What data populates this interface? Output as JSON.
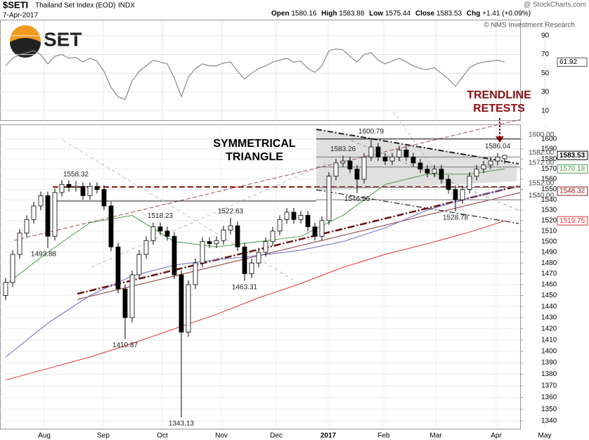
{
  "header": {
    "symbol": "$SETI",
    "name": "Thailand Set Index (EOD)",
    "exchange": "INDX",
    "date": "7-Apr-2017",
    "source": "@ StockCharts.com",
    "credit": "© NMS Investment Research",
    "logo": "SET",
    "quote": [
      {
        "label": "Open",
        "value": 1580.16
      },
      {
        "label": "High",
        "value": 1583.88
      },
      {
        "label": "Low",
        "value": 1575.44
      },
      {
        "label": "Close",
        "value": 1583.53
      },
      {
        "label": "Chg",
        "value": 1.41,
        "value_label": "+1.41",
        "pct": 0.09,
        "pct_label": "(+0.09%)"
      }
    ]
  },
  "chart_data": [
    {
      "type": "line",
      "color": "#888888",
      "ylim": [
        0,
        106.4
      ],
      "yticks": [
        10,
        30,
        50,
        70,
        90
      ],
      "values": [
        58,
        66,
        70,
        72,
        74,
        70,
        60,
        68,
        70,
        66,
        67,
        62,
        66,
        63,
        52,
        35,
        25,
        22,
        42,
        52,
        58,
        64,
        62,
        60,
        45,
        25,
        46,
        55,
        60,
        58,
        58,
        61,
        62,
        52,
        44,
        50,
        55,
        58,
        62,
        64,
        66,
        62,
        63,
        55,
        51,
        58,
        74,
        76,
        75,
        68,
        62,
        70,
        72,
        64,
        60,
        63,
        66,
        62,
        58,
        55,
        54,
        56,
        50,
        44,
        36,
        46,
        56,
        60,
        62,
        63,
        64,
        61.92
      ]
    },
    {
      "type": "candlestick",
      "log": true,
      "xlim": [
        -0.8,
        73.2
      ],
      "ylim": [
        1333.5,
        1614
      ],
      "xticks": [
        {
          "value": 5.5,
          "label": "Aug"
        },
        {
          "value": 13.9,
          "label": "Sep"
        },
        {
          "value": 22.3,
          "label": "Oct"
        },
        {
          "value": 30.7,
          "label": "Nov"
        },
        {
          "value": 38.5,
          "label": "Dec"
        },
        {
          "value": 45.9,
          "label": "2017"
        },
        {
          "value": 53.8,
          "label": "Feb"
        },
        {
          "value": 61.2,
          "label": "Mar"
        },
        {
          "value": 69.8,
          "label": "Apr"
        },
        {
          "value": 76.7,
          "label": "May"
        }
      ],
      "yticks": [
        1340,
        1350,
        1360,
        1370,
        1380,
        1390,
        1400,
        1410,
        1420,
        1430,
        1440,
        1450,
        1460,
        1470,
        1480,
        1490,
        1500,
        1510,
        1520,
        1530,
        1540,
        1550,
        1560,
        1570,
        1580,
        1590,
        1600
      ],
      "ohlc": [
        [
          1450,
          1466,
          1446,
          1462
        ],
        [
          1462,
          1492,
          1458,
          1488
        ],
        [
          1488,
          1512,
          1484,
          1508
        ],
        [
          1508,
          1525,
          1504,
          1521
        ],
        [
          1521,
          1538,
          1517,
          1534
        ],
        [
          1534,
          1548,
          1530,
          1544
        ],
        [
          1544,
          1548,
          1493.88,
          1505
        ],
        [
          1505,
          1551,
          1501,
          1547
        ],
        [
          1547,
          1559,
          1543,
          1555
        ],
        [
          1555,
          1559,
          1548,
          1552
        ],
        [
          1552,
          1558.32,
          1548,
          1553
        ],
        [
          1553,
          1557,
          1540,
          1544
        ],
        [
          1544,
          1557,
          1540,
          1553
        ],
        [
          1553,
          1557,
          1546,
          1550
        ],
        [
          1550,
          1554,
          1530,
          1534
        ],
        [
          1534,
          1538,
          1491,
          1495
        ],
        [
          1495,
          1499,
          1452,
          1456
        ],
        [
          1456,
          1460,
          1410.87,
          1430
        ],
        [
          1430,
          1473,
          1426,
          1469
        ],
        [
          1469,
          1492,
          1465,
          1488
        ],
        [
          1488,
          1505,
          1484,
          1501
        ],
        [
          1501,
          1518,
          1497,
          1514
        ],
        [
          1514,
          1518.23,
          1506,
          1510
        ],
        [
          1510,
          1514,
          1501,
          1505
        ],
        [
          1505,
          1509,
          1465,
          1469
        ],
        [
          1469,
          1473,
          1343.13,
          1417
        ],
        [
          1417,
          1464,
          1413,
          1460
        ],
        [
          1460,
          1484,
          1456,
          1480
        ],
        [
          1480,
          1504,
          1476,
          1500
        ],
        [
          1500,
          1504,
          1494,
          1498
        ],
        [
          1498,
          1505,
          1494,
          1501
        ],
        [
          1501,
          1515,
          1497,
          1511
        ],
        [
          1511,
          1522.63,
          1507,
          1515
        ],
        [
          1515,
          1519,
          1491,
          1495
        ],
        [
          1495,
          1499,
          1463.31,
          1470
        ],
        [
          1470,
          1484,
          1466,
          1480
        ],
        [
          1480,
          1494,
          1476,
          1490
        ],
        [
          1490,
          1504,
          1486,
          1500
        ],
        [
          1500,
          1514,
          1496,
          1510
        ],
        [
          1510,
          1525,
          1506,
          1521
        ],
        [
          1521,
          1532,
          1517,
          1528
        ],
        [
          1528,
          1532,
          1517,
          1521
        ],
        [
          1521,
          1529,
          1517,
          1525
        ],
        [
          1525,
          1529,
          1510,
          1514
        ],
        [
          1514,
          1518,
          1501,
          1505
        ],
        [
          1505,
          1524,
          1501,
          1520
        ],
        [
          1520,
          1567,
          1516,
          1563
        ],
        [
          1563,
          1580,
          1559,
          1576
        ],
        [
          1576,
          1583.26,
          1572,
          1578
        ],
        [
          1578,
          1582,
          1566,
          1570
        ],
        [
          1570,
          1574,
          1546.56,
          1560
        ],
        [
          1560,
          1586,
          1556,
          1582
        ],
        [
          1582,
          1600.79,
          1578,
          1592
        ],
        [
          1592,
          1596,
          1578,
          1582
        ],
        [
          1582,
          1586,
          1574,
          1578
        ],
        [
          1578,
          1586,
          1574,
          1582
        ],
        [
          1582,
          1593,
          1578,
          1589
        ],
        [
          1589,
          1593,
          1578,
          1582
        ],
        [
          1582,
          1586,
          1572,
          1576
        ],
        [
          1576,
          1580,
          1566,
          1570
        ],
        [
          1570,
          1574,
          1562,
          1566
        ],
        [
          1566,
          1574,
          1562,
          1570
        ],
        [
          1570,
          1574,
          1556,
          1560
        ],
        [
          1560,
          1564,
          1546,
          1550
        ],
        [
          1550,
          1554,
          1528.78,
          1540
        ],
        [
          1540,
          1554,
          1536,
          1550
        ],
        [
          1550,
          1567,
          1546,
          1563
        ],
        [
          1563,
          1574,
          1559,
          1570
        ],
        [
          1570,
          1578,
          1566,
          1574
        ],
        [
          1574,
          1582,
          1570,
          1578
        ],
        [
          1578,
          1586.04,
          1574,
          1582
        ],
        [
          1580.16,
          1583.88,
          1575.44,
          1583.53
        ]
      ],
      "moving_averages": {
        "x": [
          0,
          6,
          12,
          18,
          24,
          30,
          36,
          42,
          48,
          54,
          60,
          66,
          71
        ],
        "series": [
          {
            "color": "#e03030",
            "values": [
              1375,
              1385,
              1395,
              1407,
              1420,
              1433,
              1448,
              1461,
              1476,
              1488,
              1498,
              1509,
              1519.75
            ]
          },
          {
            "color": "#6a6acd",
            "values": [
              1395,
              1425,
              1450,
              1468,
              1478,
              1483,
              1487,
              1492,
              1500,
              1513,
              1530,
              1542,
              1550
            ]
          },
          {
            "color": "#4a9a4a",
            "values": [
              1460,
              1490,
              1518,
              1525,
              1500,
              1495,
              1500,
              1505,
              1525,
              1555,
              1565,
              1565,
              1570.18
            ]
          }
        ]
      },
      "levels": [
        {
          "value": 1600,
          "label": "1600.00",
          "color": "#000000"
        },
        {
          "value": 1582,
          "label": "1582.00",
          "color": "#777777"
        },
        {
          "value": 1572,
          "label": "1572.00",
          "color": "#777777"
        },
        {
          "value": 1552,
          "label": "1552.00",
          "color": "#777777"
        },
        {
          "value": 1540,
          "label": "1540.00",
          "color": "#777777"
        }
      ],
      "trendline_value": {
        "value": 1548.32,
        "color": "#8b1a1a"
      },
      "annotations": [
        {
          "lines": [
            "SYMMETRICAL",
            "TRIANGLE"
          ],
          "color": "#000000"
        },
        {
          "lines": [
            "TRENDLINE",
            "RETESTS"
          ],
          "color": "#8b1010"
        }
      ]
    }
  ]
}
